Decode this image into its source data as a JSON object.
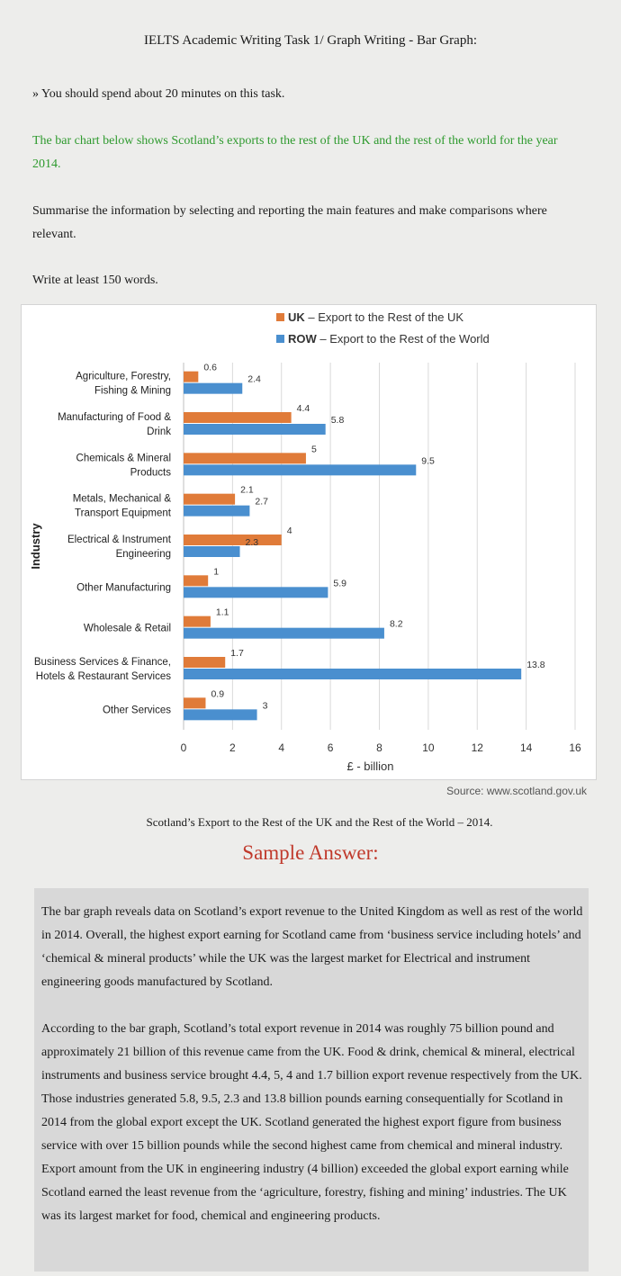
{
  "doc": {
    "title": "IELTS Academic Writing Task 1/ Graph Writing - Bar Graph:",
    "time_note": "» You should spend about 20 minutes on this task.",
    "prompt": "The bar chart below shows Scotland’s exports to the rest of the UK and the rest of the world for the year 2014.",
    "instructions": "Summarise the information by selecting and reporting the main features and make comparisons where relevant.",
    "word_count": "Write at least 150 words.",
    "source": "Source: www.scotland.gov.uk",
    "caption": "Scotland’s Export to the Rest of the UK and the Rest of the World – 2014.",
    "sample_heading": "Sample Answer:",
    "answer_p1": "The bar graph reveals data on Scotland’s export revenue to the United Kingdom as well as rest of the world in 2014. Overall, the highest export earning for Scotland came from ‘business service including hotels’ and ‘chemical & mineral products’ while the UK was the largest market for Electrical and instrument engineering goods manufactured by Scotland.",
    "answer_p2": "According to the bar graph, Scotland’s total export revenue in 2014 was roughly 75 billion pound and approximately 21 billion of this revenue came from the UK. Food & drink, chemical & mineral, electrical instruments and business service brought 4.4, 5, 4 and 1.7 billion export revenue respectively from the UK. Those industries generated 5.8, 9.5, 2.3 and 13.8 billion pounds earning consequentially for Scotland in 2014 from the global export except the UK. Scotland generated the highest export figure from business service with over 15 billion pounds while the second highest came from chemical and mineral industry. Export amount from the UK in engineering industry (4 billion) exceeded the global export earning while Scotland earned the least revenue from the ‘agriculture, forestry, fishing and mining’ industries. The UK was its largest market for food, chemical and engineering products."
  },
  "chart_data": {
    "type": "bar",
    "orientation": "horizontal",
    "title": "",
    "xlabel": "£ - billion",
    "ylabel": "Industry",
    "xlim": [
      0,
      16
    ],
    "xticks": [
      0,
      2,
      4,
      6,
      8,
      10,
      12,
      14,
      16
    ],
    "grid": true,
    "legend_position": "top",
    "categories": [
      [
        "Agriculture, Forestry,",
        "Fishing & Mining"
      ],
      [
        "Manufacturing of Food &",
        "Drink"
      ],
      [
        "Chemicals & Mineral",
        "Products"
      ],
      [
        "Metals, Mechanical &",
        "Transport Equipment"
      ],
      [
        "Electrical & Instrument",
        "Engineering"
      ],
      [
        "Other Manufacturing"
      ],
      [
        "Wholesale & Retail"
      ],
      [
        "Business Services & Finance,",
        "Hotels & Restaurant Services"
      ],
      [
        "Other Services"
      ]
    ],
    "series": [
      {
        "key": "UK",
        "legend_key": "UK",
        "legend_desc": "– Export to the Rest of the UK",
        "color": "#e07b39",
        "values": [
          0.6,
          4.4,
          5,
          2.1,
          4,
          1,
          1.1,
          1.7,
          0.9
        ]
      },
      {
        "key": "ROW",
        "legend_key": "ROW",
        "legend_desc": "– Export to the Rest of the World",
        "color": "#4a8fcf",
        "values": [
          2.4,
          5.8,
          9.5,
          2.7,
          2.3,
          5.9,
          8.2,
          13.8,
          3
        ]
      }
    ]
  }
}
